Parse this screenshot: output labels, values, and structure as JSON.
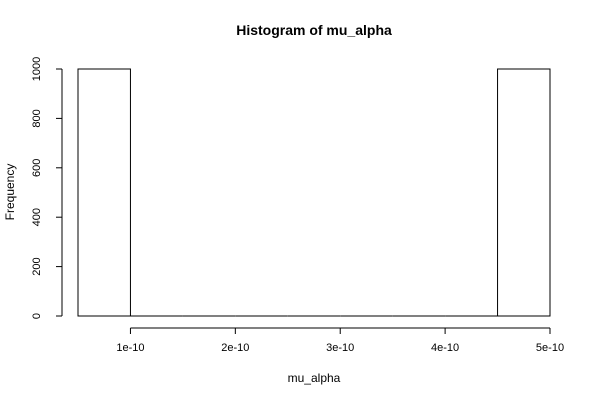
{
  "chart_data": {
    "type": "bar",
    "title": "Histogram of mu_alpha",
    "xlabel": "mu_alpha",
    "ylabel": "Frequency",
    "xlim": [
      5e-11,
      5e-10
    ],
    "ylim": [
      0,
      1000
    ],
    "x_ticks": [
      1e-10,
      2e-10,
      3e-10,
      4e-10,
      5e-10
    ],
    "x_tick_labels": [
      "1e-10",
      "2e-10",
      "3e-10",
      "4e-10",
      "5e-10"
    ],
    "y_ticks": [
      0,
      200,
      400,
      600,
      800,
      1000
    ],
    "y_tick_labels": [
      "0",
      "200",
      "400",
      "600",
      "800",
      "1000"
    ],
    "bins": [
      {
        "start": 5e-11,
        "end": 1e-10,
        "count": 1000
      },
      {
        "start": 1e-10,
        "end": 1.5e-10,
        "count": 0
      },
      {
        "start": 1.5e-10,
        "end": 2e-10,
        "count": 0
      },
      {
        "start": 2e-10,
        "end": 2.5e-10,
        "count": 0
      },
      {
        "start": 2.5e-10,
        "end": 3e-10,
        "count": 0
      },
      {
        "start": 3e-10,
        "end": 3.5e-10,
        "count": 0
      },
      {
        "start": 3.5e-10,
        "end": 4e-10,
        "count": 0
      },
      {
        "start": 4e-10,
        "end": 4.5e-10,
        "count": 0
      },
      {
        "start": 4.5e-10,
        "end": 5e-10,
        "count": 1000
      }
    ],
    "grid": false,
    "legend": "none"
  }
}
